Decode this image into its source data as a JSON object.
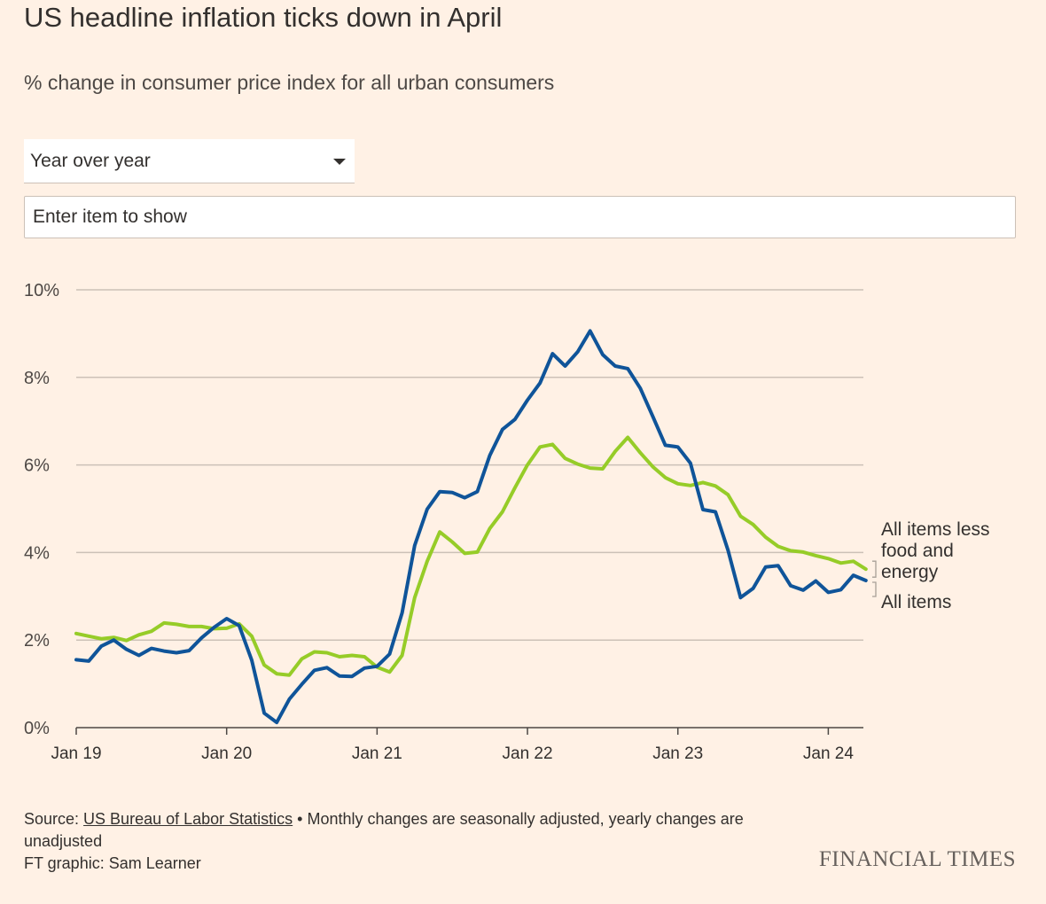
{
  "header": {
    "title": "US headline inflation ticks down in April",
    "subtitle": "% change in consumer price index for all urban consumers"
  },
  "controls": {
    "period_select": {
      "value": "Year over year",
      "icon": "caret-down-icon"
    },
    "item_search": {
      "placeholder": "Enter item to show"
    }
  },
  "footer": {
    "source_prefix": "Source: ",
    "source_link": "US Bureau of Labor Statistics",
    "source_note": " • Monthly changes are seasonally adjusted, yearly changes are unadjusted",
    "credit": "FT graphic: Sam Learner",
    "brand": "FINANCIAL TIMES"
  },
  "chart_data": {
    "type": "line",
    "title": "US headline inflation ticks down in April",
    "subtitle": "% change in consumer price index for all urban consumers",
    "x_start": "2019-01",
    "x_end": "2024-04",
    "x_tick_labels": [
      "Jan 19",
      "Jan 20",
      "Jan 21",
      "Jan 22",
      "Jan 23",
      "Jan 24"
    ],
    "y_tick_labels": [
      "0%",
      "2%",
      "4%",
      "6%",
      "8%",
      "10%"
    ],
    "ylim": [
      0,
      10
    ],
    "y_ticks": [
      0,
      2,
      4,
      6,
      8,
      10
    ],
    "grid": true,
    "colors": {
      "all_items": "#0f5499",
      "core": "#96cc28",
      "grid": "#ccc1b7",
      "axis": "#4d4845"
    },
    "series": [
      {
        "name": "All items",
        "key": "all_items",
        "values": [
          1.55,
          1.52,
          1.86,
          2.0,
          1.79,
          1.65,
          1.81,
          1.75,
          1.71,
          1.76,
          2.05,
          2.29,
          2.49,
          2.33,
          1.54,
          0.33,
          0.12,
          0.65,
          0.99,
          1.31,
          1.37,
          1.18,
          1.17,
          1.36,
          1.4,
          1.68,
          2.62,
          4.16,
          4.99,
          5.39,
          5.37,
          5.25,
          5.39,
          6.22,
          6.81,
          7.04,
          7.48,
          7.87,
          8.54,
          8.26,
          8.58,
          9.06,
          8.52,
          8.26,
          8.2,
          7.75,
          7.11,
          6.45,
          6.41,
          6.04,
          4.98,
          4.93,
          4.05,
          2.97,
          3.18,
          3.67,
          3.7,
          3.24,
          3.14,
          3.35,
          3.09,
          3.15,
          3.48,
          3.36
        ]
      },
      {
        "name": "All items less food and energy",
        "key": "core",
        "values": [
          2.15,
          2.09,
          2.03,
          2.06,
          1.99,
          2.12,
          2.2,
          2.39,
          2.36,
          2.31,
          2.31,
          2.26,
          2.27,
          2.37,
          2.09,
          1.43,
          1.23,
          1.2,
          1.57,
          1.73,
          1.71,
          1.62,
          1.65,
          1.62,
          1.38,
          1.27,
          1.65,
          2.97,
          3.8,
          4.47,
          4.24,
          3.98,
          4.01,
          4.55,
          4.93,
          5.48,
          6.0,
          6.41,
          6.47,
          6.15,
          6.02,
          5.93,
          5.91,
          6.31,
          6.63,
          6.28,
          5.96,
          5.71,
          5.57,
          5.53,
          5.6,
          5.52,
          5.32,
          4.83,
          4.64,
          4.35,
          4.14,
          4.04,
          4.01,
          3.93,
          3.86,
          3.76,
          3.8,
          3.62
        ]
      }
    ],
    "end_labels": [
      {
        "key": "core",
        "text": [
          "All items less",
          "food and",
          "energy"
        ]
      },
      {
        "key": "all_items",
        "text": [
          "All items"
        ]
      }
    ]
  }
}
